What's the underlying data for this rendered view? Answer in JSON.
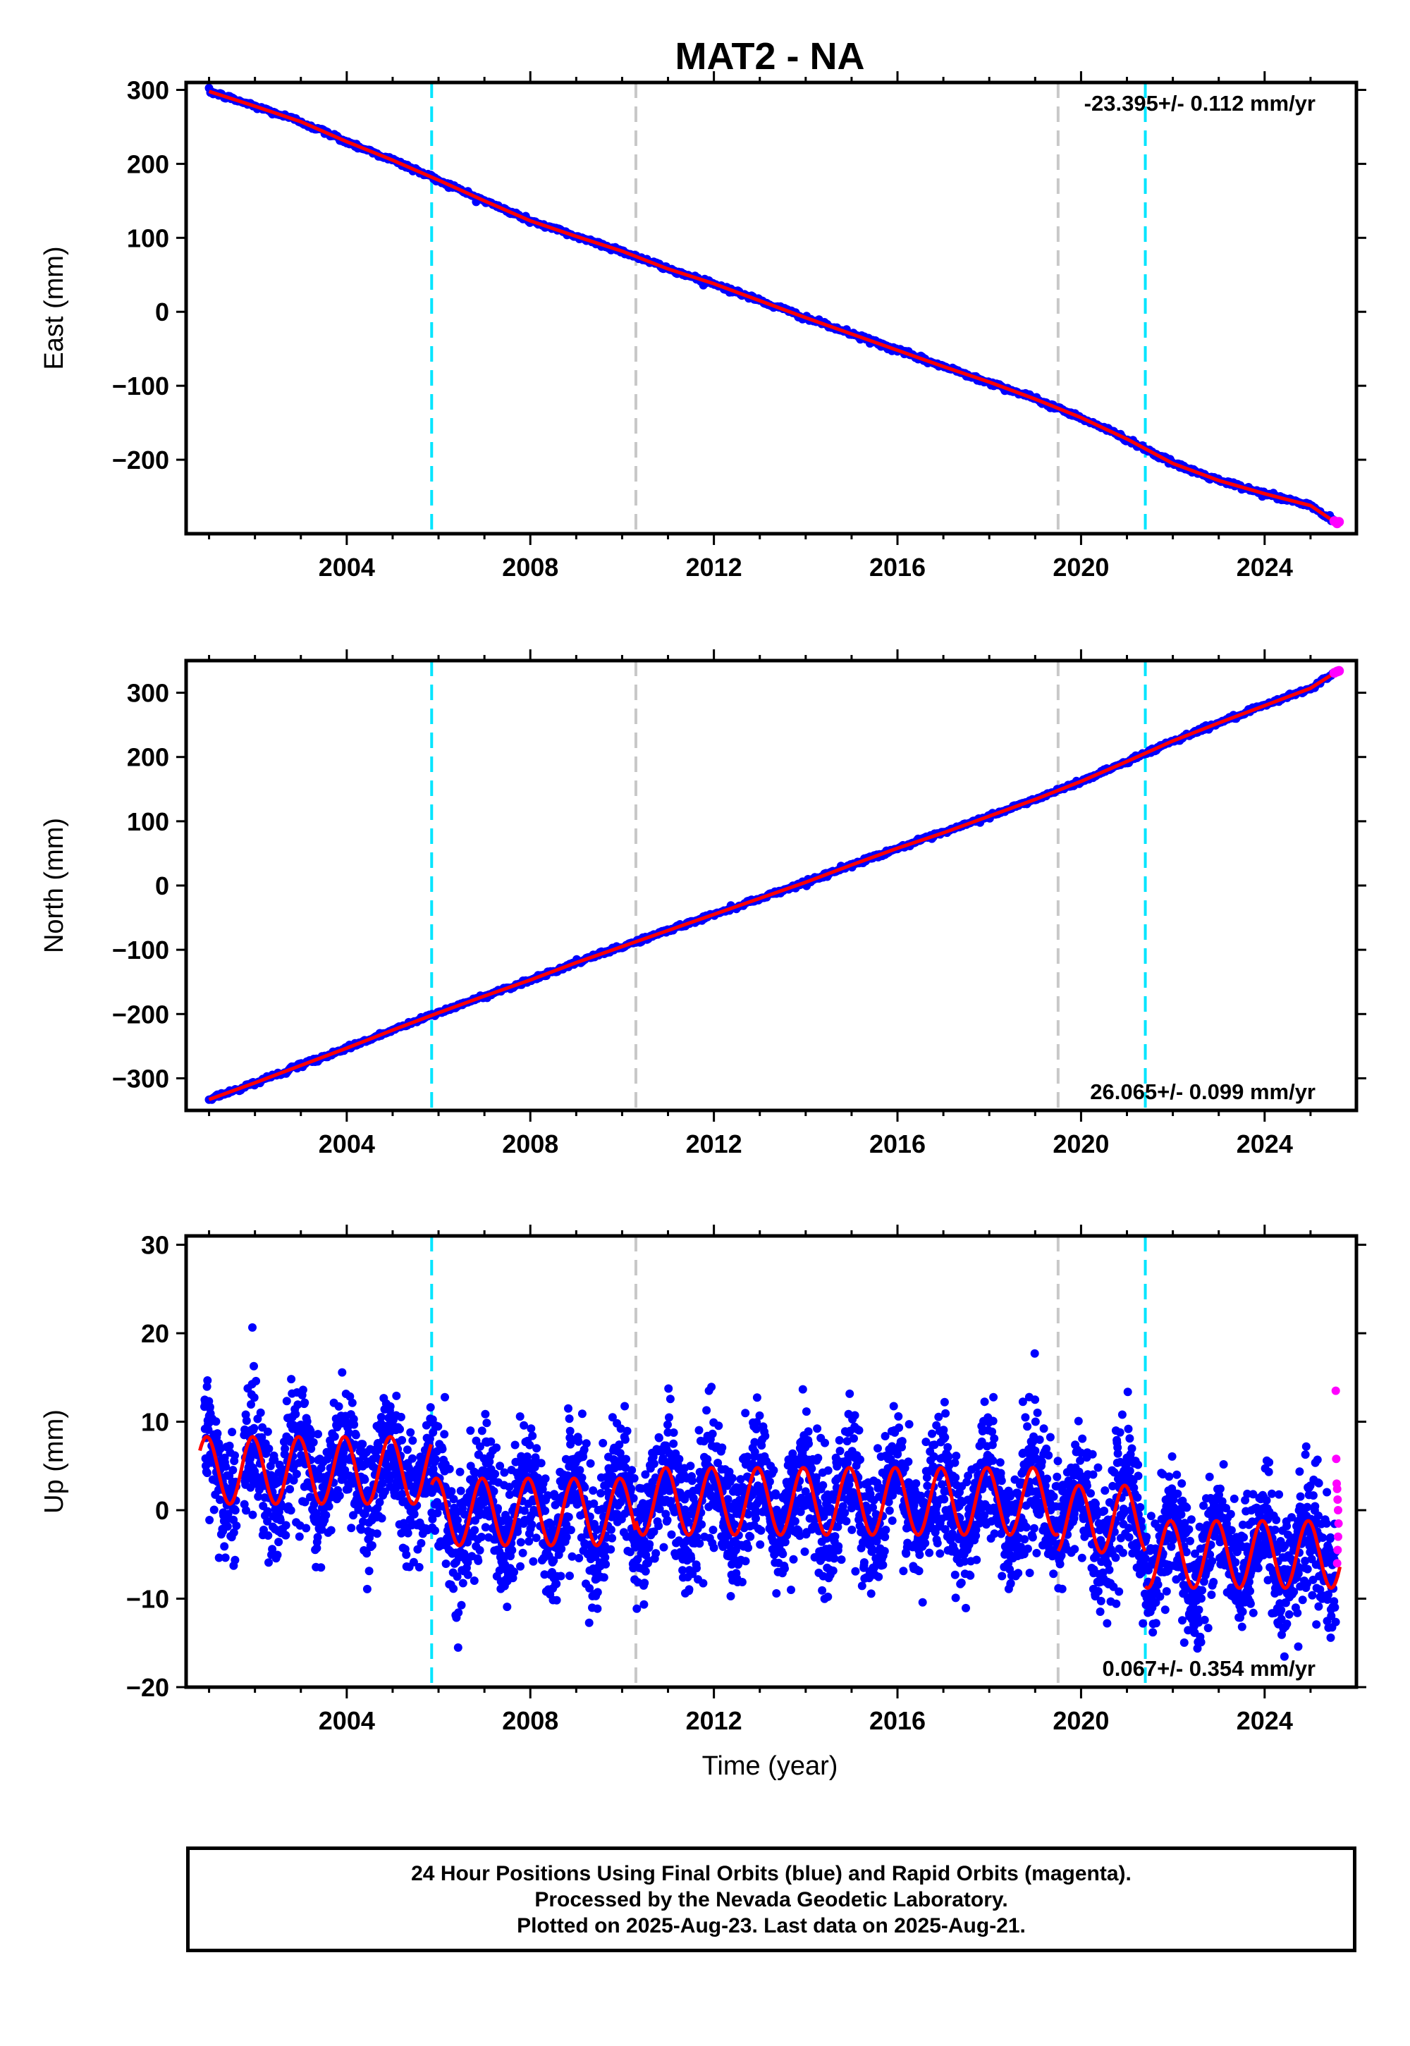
{
  "title": "MAT2 - NA",
  "xlabel": "Time (year)",
  "x_ticks": [
    "2004",
    "2008",
    "2012",
    "2016",
    "2020",
    "2024"
  ],
  "colors": {
    "final": "#0000ff",
    "rapid": "#ff00ff",
    "model": "#ff0000",
    "equipment_change": "#00e5ff",
    "earthquake": "#c8c8c8"
  },
  "chart_data": [
    {
      "type": "scatter",
      "panel": "east",
      "ylabel": "East (mm)",
      "ylim": [
        -300,
        310
      ],
      "xlim": [
        2000.5,
        2026.0
      ],
      "y_ticks": [
        "300",
        "200",
        "100",
        "0",
        "−100",
        "−200"
      ],
      "y_tick_values": [
        300,
        200,
        100,
        0,
        -100,
        -200
      ],
      "rate_label": "-23.395+/- 0.112 mm/yr",
      "series": [
        {
          "name": "Final Orbits (blue)",
          "x": [
            2001.0,
            2002.0,
            2003.0,
            2004.0,
            2005.0,
            2006.0,
            2007.0,
            2008.0,
            2009.0,
            2010.0,
            2011.0,
            2012.0,
            2013.0,
            2014.0,
            2015.0,
            2016.0,
            2017.0,
            2018.0,
            2019.0,
            2020.0,
            2021.0,
            2022.0,
            2023.0,
            2024.0,
            2025.0,
            2025.55
          ],
          "y": [
            298,
            278,
            257,
            230,
            205,
            178,
            150,
            123,
            102,
            82,
            58,
            38,
            15,
            -8,
            -30,
            -52,
            -74,
            -95,
            -118,
            -143,
            -172,
            -205,
            -228,
            -246,
            -262,
            -285
          ]
        },
        {
          "name": "Rapid Orbits (magenta)",
          "x": [
            2025.52,
            2025.58,
            2025.62
          ],
          "y": [
            -283,
            -286,
            -284
          ]
        }
      ],
      "vlines_cyan": [
        2005.85,
        2021.4
      ],
      "vlines_gray": [
        2010.3,
        2019.5
      ]
    },
    {
      "type": "scatter",
      "panel": "north",
      "ylabel": "North (mm)",
      "ylim": [
        -350,
        350
      ],
      "xlim": [
        2000.5,
        2026.0
      ],
      "y_ticks": [
        "300",
        "200",
        "100",
        "0",
        "−100",
        "−200",
        "−300"
      ],
      "y_tick_values": [
        300,
        200,
        100,
        0,
        -100,
        -200,
        -300
      ],
      "rate_label": "26.065+/- 0.099 mm/yr",
      "series": [
        {
          "name": "Final Orbits (blue)",
          "x": [
            2001.0,
            2002.0,
            2003.0,
            2004.0,
            2005.0,
            2006.0,
            2007.0,
            2008.0,
            2009.0,
            2010.0,
            2011.0,
            2012.0,
            2013.0,
            2014.0,
            2015.0,
            2016.0,
            2017.0,
            2018.0,
            2019.0,
            2020.0,
            2021.0,
            2022.0,
            2023.0,
            2024.0,
            2025.0,
            2025.55
          ],
          "y": [
            -333,
            -307,
            -280,
            -253,
            -225,
            -198,
            -172,
            -147,
            -120,
            -95,
            -70,
            -45,
            -20,
            5,
            32,
            58,
            82,
            108,
            134,
            162,
            193,
            225,
            253,
            280,
            307,
            332
          ]
        },
        {
          "name": "Rapid Orbits (magenta)",
          "x": [
            2025.52,
            2025.58,
            2025.62
          ],
          "y": [
            331,
            333,
            334
          ]
        }
      ],
      "vlines_cyan": [
        2005.85,
        2021.4
      ],
      "vlines_gray": [
        2010.3,
        2019.5
      ]
    },
    {
      "type": "scatter",
      "panel": "up",
      "ylabel": "Up (mm)",
      "ylim": [
        -20,
        31
      ],
      "xlim": [
        2000.5,
        2026.0
      ],
      "y_ticks": [
        "30",
        "20",
        "10",
        "0",
        "−10",
        "−20"
      ],
      "y_tick_values": [
        30,
        20,
        10,
        0,
        -10,
        -20
      ],
      "rate_label": "0.067+/- 0.354 mm/yr",
      "model_annual_amplitude_mm": 3.8,
      "model_offsets": [
        {
          "from": 2000.8,
          "to": 2005.85,
          "mean": 4.5
        },
        {
          "from": 2005.85,
          "to": 2010.3,
          "mean": -0.2
        },
        {
          "from": 2010.3,
          "to": 2019.5,
          "mean": 1.0
        },
        {
          "from": 2019.5,
          "to": 2021.4,
          "mean": -1.0
        },
        {
          "from": 2021.4,
          "to": 2025.65,
          "mean": -5.0
        }
      ],
      "series": [
        {
          "name": "Final Orbits (blue)",
          "x_range": [
            2000.9,
            2025.55
          ],
          "scatter_std_mm": 3.6
        },
        {
          "name": "Rapid Orbits (magenta)",
          "x": [
            2025.55,
            2025.56,
            2025.57,
            2025.58,
            2025.59,
            2025.6,
            2025.61,
            2025.6,
            2025.59,
            2025.58
          ],
          "y": [
            13.5,
            5.8,
            3.0,
            2.4,
            1.2,
            0.0,
            -1.5,
            -3.0,
            -4.5,
            -6.0
          ]
        }
      ],
      "vlines_cyan": [
        2005.85,
        2021.4
      ],
      "vlines_gray": [
        2010.3,
        2019.5
      ]
    }
  ],
  "footer": {
    "line1": "24 Hour Positions Using Final Orbits (blue) and Rapid Orbits (magenta).",
    "line2": "Processed by the Nevada Geodetic Laboratory.",
    "line3": "Plotted on 2025-Aug-23. Last data on 2025-Aug-21."
  }
}
